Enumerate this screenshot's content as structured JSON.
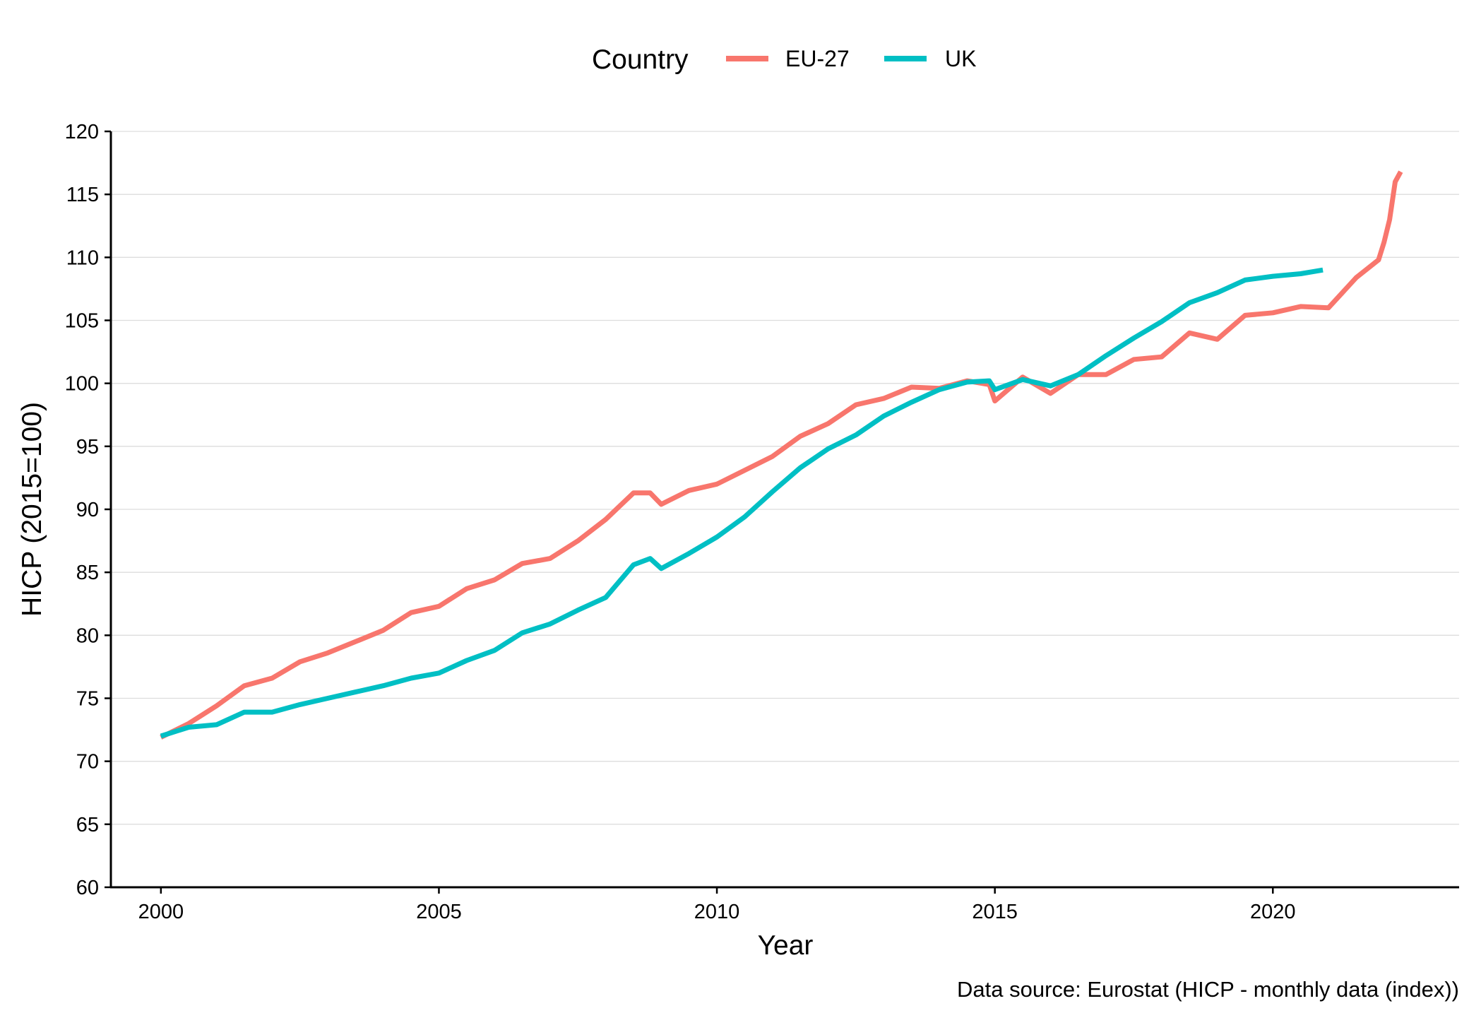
{
  "chart_data": {
    "type": "line",
    "title": "",
    "xlabel": "Year",
    "ylabel": "HICP (2015=100)",
    "caption": "Data source: Eurostat (HICP - monthly data (index))",
    "legend": {
      "title": "Country",
      "position": "top"
    },
    "xlim": [
      1999.1,
      2023.35
    ],
    "ylim": [
      60,
      120
    ],
    "x_ticks": [
      2000,
      2005,
      2010,
      2015,
      2020
    ],
    "y_ticks": [
      60,
      65,
      70,
      75,
      80,
      85,
      90,
      95,
      100,
      105,
      110,
      115,
      120
    ],
    "grid": "horizontal",
    "series": [
      {
        "name": "EU-27",
        "color": "#F8766D",
        "points": [
          [
            2000.0,
            71.9
          ],
          [
            2000.5,
            73.0
          ],
          [
            2001.0,
            74.4
          ],
          [
            2001.5,
            76.0
          ],
          [
            2002.0,
            76.6
          ],
          [
            2002.5,
            77.9
          ],
          [
            2003.0,
            78.6
          ],
          [
            2003.5,
            79.5
          ],
          [
            2004.0,
            80.4
          ],
          [
            2004.5,
            81.8
          ],
          [
            2005.0,
            82.3
          ],
          [
            2005.5,
            83.7
          ],
          [
            2006.0,
            84.4
          ],
          [
            2006.5,
            85.7
          ],
          [
            2007.0,
            86.1
          ],
          [
            2007.5,
            87.5
          ],
          [
            2008.0,
            89.2
          ],
          [
            2008.5,
            91.3
          ],
          [
            2008.8,
            91.3
          ],
          [
            2009.0,
            90.4
          ],
          [
            2009.5,
            91.5
          ],
          [
            2010.0,
            92.0
          ],
          [
            2010.5,
            93.1
          ],
          [
            2011.0,
            94.2
          ],
          [
            2011.5,
            95.8
          ],
          [
            2012.0,
            96.8
          ],
          [
            2012.5,
            98.3
          ],
          [
            2013.0,
            98.8
          ],
          [
            2013.5,
            99.7
          ],
          [
            2014.0,
            99.6
          ],
          [
            2014.5,
            100.2
          ],
          [
            2014.9,
            99.9
          ],
          [
            2015.0,
            98.6
          ],
          [
            2015.5,
            100.5
          ],
          [
            2016.0,
            99.2
          ],
          [
            2016.5,
            100.7
          ],
          [
            2017.0,
            100.7
          ],
          [
            2017.5,
            101.9
          ],
          [
            2018.0,
            102.1
          ],
          [
            2018.5,
            104.0
          ],
          [
            2019.0,
            103.5
          ],
          [
            2019.5,
            105.4
          ],
          [
            2020.0,
            105.6
          ],
          [
            2020.5,
            106.1
          ],
          [
            2021.0,
            106.0
          ],
          [
            2021.5,
            108.4
          ],
          [
            2021.9,
            109.8
          ],
          [
            2022.0,
            111.2
          ],
          [
            2022.1,
            113.0
          ],
          [
            2022.2,
            116.0
          ],
          [
            2022.3,
            116.8
          ]
        ]
      },
      {
        "name": "UK",
        "color": "#00BFC4",
        "points": [
          [
            2000.0,
            72.0
          ],
          [
            2000.5,
            72.7
          ],
          [
            2001.0,
            72.9
          ],
          [
            2001.5,
            73.9
          ],
          [
            2002.0,
            73.9
          ],
          [
            2002.5,
            74.5
          ],
          [
            2003.0,
            75.0
          ],
          [
            2003.5,
            75.5
          ],
          [
            2004.0,
            76.0
          ],
          [
            2004.5,
            76.6
          ],
          [
            2005.0,
            77.0
          ],
          [
            2005.5,
            78.0
          ],
          [
            2006.0,
            78.8
          ],
          [
            2006.5,
            80.2
          ],
          [
            2007.0,
            80.9
          ],
          [
            2007.5,
            82.0
          ],
          [
            2008.0,
            83.0
          ],
          [
            2008.5,
            85.6
          ],
          [
            2008.8,
            86.1
          ],
          [
            2009.0,
            85.3
          ],
          [
            2009.5,
            86.5
          ],
          [
            2010.0,
            87.8
          ],
          [
            2010.5,
            89.4
          ],
          [
            2011.0,
            91.4
          ],
          [
            2011.5,
            93.3
          ],
          [
            2012.0,
            94.8
          ],
          [
            2012.5,
            95.9
          ],
          [
            2013.0,
            97.4
          ],
          [
            2013.5,
            98.5
          ],
          [
            2014.0,
            99.5
          ],
          [
            2014.5,
            100.1
          ],
          [
            2014.9,
            100.2
          ],
          [
            2015.0,
            99.5
          ],
          [
            2015.5,
            100.3
          ],
          [
            2016.0,
            99.8
          ],
          [
            2016.5,
            100.7
          ],
          [
            2017.0,
            102.2
          ],
          [
            2017.5,
            103.6
          ],
          [
            2018.0,
            104.9
          ],
          [
            2018.5,
            106.4
          ],
          [
            2019.0,
            107.2
          ],
          [
            2019.5,
            108.2
          ],
          [
            2020.0,
            108.5
          ],
          [
            2020.5,
            108.7
          ],
          [
            2020.9,
            109.0
          ]
        ]
      }
    ]
  }
}
